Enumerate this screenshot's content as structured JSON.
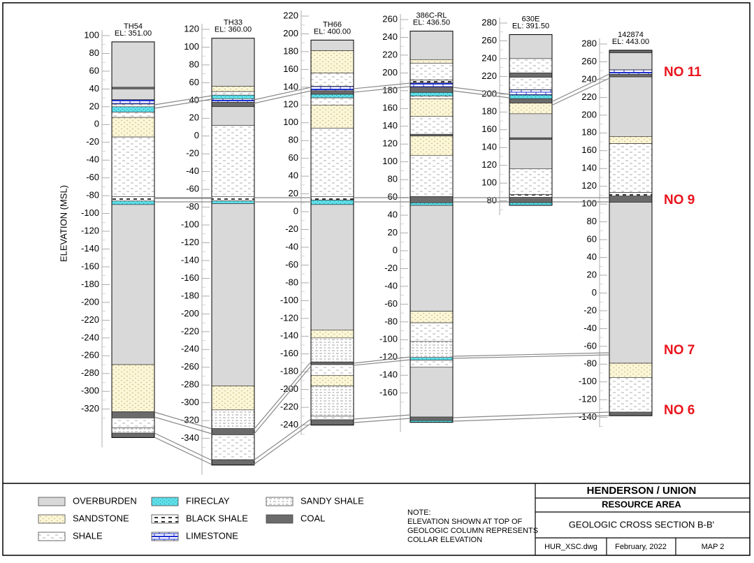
{
  "y_axis_label": "ELEVATION (MSL)",
  "legend": [
    {
      "label": "OVERBURDEN",
      "color": "#d9d9d9"
    },
    {
      "label": "SANDSTONE",
      "color": "#fcf6d8"
    },
    {
      "label": "SHALE",
      "color": "#ffffff"
    },
    {
      "label": "FIRECLAY",
      "color": "#5fe0ea"
    },
    {
      "label": "BLACK SHALE",
      "color": "#ffffff"
    },
    {
      "label": "LIMESTONE",
      "color": "#ffffff"
    },
    {
      "label": "SANDY SHALE",
      "color": "#ffffff"
    },
    {
      "label": "COAL",
      "color": "#6b6b6b"
    }
  ],
  "seams": [
    "NO 11",
    "NO 9",
    "NO 7",
    "NO 6"
  ],
  "columns": [
    {
      "name": "TH54",
      "elevation": "EL: 351.00",
      "ticks": [
        100,
        80,
        60,
        40,
        20,
        0,
        -20,
        -40,
        -60,
        -80,
        -100,
        -120,
        -140,
        -160,
        -180,
        -200,
        -220,
        -240,
        -260,
        -280,
        -300,
        -320
      ],
      "layers": [
        {
          "lith": "OVERBURDEN",
          "top": 93,
          "bottom": 42
        },
        {
          "lith": "COAL",
          "top": 42,
          "bottom": 40
        },
        {
          "lith": "OVERBURDEN",
          "top": 40,
          "bottom": 28
        },
        {
          "lith": "LIMESTONE",
          "top": 28,
          "bottom": 23
        },
        {
          "lith": "SHALE",
          "top": 23,
          "bottom": 20
        },
        {
          "lith": "FIRECLAY",
          "top": 20,
          "bottom": 14
        },
        {
          "lith": "SHALE",
          "top": 14,
          "bottom": 8
        },
        {
          "lith": "SANDSTONE",
          "top": 8,
          "bottom": -14
        },
        {
          "lith": "SHALE",
          "top": -14,
          "bottom": -81
        },
        {
          "lith": "BLACK SHALE",
          "top": -81,
          "bottom": -86
        },
        {
          "lith": "FIRECLAY",
          "top": -86,
          "bottom": -90
        },
        {
          "lith": "OVERBURDEN",
          "top": -90,
          "bottom": -270
        },
        {
          "lith": "SANDSTONE",
          "top": -270,
          "bottom": -323
        },
        {
          "lith": "COAL",
          "top": -323,
          "bottom": -330
        },
        {
          "lith": "SHALE",
          "top": -330,
          "bottom": -341
        },
        {
          "lith": "SANDY SHALE",
          "top": -341,
          "bottom": -347
        },
        {
          "lith": "COAL",
          "top": -347,
          "bottom": -352
        }
      ]
    },
    {
      "name": "TH33",
      "elevation": "EL: 360.00",
      "ticks": [
        120,
        100,
        80,
        60,
        40,
        20,
        0,
        -20,
        -40,
        -60,
        -80,
        -100,
        -120,
        -140,
        -160,
        -180,
        -200,
        -220,
        -240,
        -260,
        -280,
        -300,
        -320,
        -340
      ],
      "layers": [
        {
          "lith": "OVERBURDEN",
          "top": 110,
          "bottom": 56
        },
        {
          "lith": "SANDSTONE",
          "top": 56,
          "bottom": 50
        },
        {
          "lith": "SHALE",
          "top": 50,
          "bottom": 46
        },
        {
          "lith": "FIRECLAY",
          "top": 46,
          "bottom": 42
        },
        {
          "lith": "LIMESTONE",
          "top": 42,
          "bottom": 38
        },
        {
          "lith": "COAL",
          "top": 38,
          "bottom": 33
        },
        {
          "lith": "OVERBURDEN",
          "top": 33,
          "bottom": 12
        },
        {
          "lith": "SHALE",
          "top": 12,
          "bottom": -68
        },
        {
          "lith": "BLACK SHALE",
          "top": -68,
          "bottom": -73
        },
        {
          "lith": "FIRECLAY",
          "top": -73,
          "bottom": -76
        },
        {
          "lith": "OVERBURDEN",
          "top": -76,
          "bottom": -281
        },
        {
          "lith": "SANDSTONE",
          "top": -281,
          "bottom": -308
        },
        {
          "lith": "SANDY SHALE",
          "top": -308,
          "bottom": -329
        },
        {
          "lith": "COAL",
          "top": -329,
          "bottom": -336
        },
        {
          "lith": "SHALE",
          "top": -336,
          "bottom": -364
        },
        {
          "lith": "COAL",
          "top": -364,
          "bottom": -370
        }
      ]
    },
    {
      "name": "TH66",
      "elevation": "EL: 400.00",
      "ticks": [
        220,
        200,
        180,
        160,
        140,
        120,
        100,
        80,
        60,
        40,
        20,
        0,
        -20,
        -40,
        -60,
        -80,
        -100,
        -120,
        -140,
        -160,
        -180,
        -200,
        -220,
        -240
      ],
      "layers": [
        {
          "lith": "OVERBURDEN",
          "top": 193,
          "bottom": 181
        },
        {
          "lith": "SANDSTONE",
          "top": 181,
          "bottom": 156
        },
        {
          "lith": "SHALE",
          "top": 156,
          "bottom": 141
        },
        {
          "lith": "LIMESTONE",
          "top": 141,
          "bottom": 136
        },
        {
          "lith": "COAL",
          "top": 136,
          "bottom": 132
        },
        {
          "lith": "FIRECLAY",
          "top": 132,
          "bottom": 128
        },
        {
          "lith": "SHALE",
          "top": 128,
          "bottom": 120
        },
        {
          "lith": "SANDSTONE",
          "top": 120,
          "bottom": 94
        },
        {
          "lith": "SHALE",
          "top": 94,
          "bottom": 17
        },
        {
          "lith": "BLACK SHALE",
          "top": 17,
          "bottom": 13
        },
        {
          "lith": "FIRECLAY",
          "top": 13,
          "bottom": 8
        },
        {
          "lith": "OVERBURDEN",
          "top": 8,
          "bottom": -133
        },
        {
          "lith": "SANDSTONE",
          "top": -133,
          "bottom": -142
        },
        {
          "lith": "SANDY SHALE",
          "top": -142,
          "bottom": -169
        },
        {
          "lith": "COAL",
          "top": -169,
          "bottom": -172
        },
        {
          "lith": "SHALE",
          "top": -172,
          "bottom": -184
        },
        {
          "lith": "SANDSTONE",
          "top": -184,
          "bottom": -196
        },
        {
          "lith": "SANDY SHALE",
          "top": -196,
          "bottom": -230
        },
        {
          "lith": "SHALE",
          "top": -230,
          "bottom": -234
        },
        {
          "lith": "COAL",
          "top": -234,
          "bottom": -240
        }
      ]
    },
    {
      "name": "386C-RL",
      "elevation": "EL: 436.50",
      "ticks": [
        260,
        240,
        220,
        200,
        180,
        160,
        140,
        120,
        100,
        80,
        60,
        40,
        20,
        0,
        -20,
        -40,
        -60,
        -80,
        -100,
        -120,
        -140,
        -160
      ],
      "layers": [
        {
          "lith": "OVERBURDEN",
          "top": 247,
          "bottom": 215
        },
        {
          "lith": "SANDSTONE",
          "top": 215,
          "bottom": 211
        },
        {
          "lith": "SHALE",
          "top": 211,
          "bottom": 192
        },
        {
          "lith": "BLACK SHALE",
          "top": 192,
          "bottom": 189
        },
        {
          "lith": "LIMESTONE",
          "top": 189,
          "bottom": 184
        },
        {
          "lith": "COAL",
          "top": 184,
          "bottom": 178
        },
        {
          "lith": "FIRECLAY",
          "top": 178,
          "bottom": 174
        },
        {
          "lith": "SHALE",
          "top": 174,
          "bottom": 171
        },
        {
          "lith": "SANDSTONE",
          "top": 171,
          "bottom": 151
        },
        {
          "lith": "SHALE",
          "top": 151,
          "bottom": 131
        },
        {
          "lith": "COAL",
          "top": 131,
          "bottom": 129
        },
        {
          "lith": "SANDSTONE",
          "top": 129,
          "bottom": 107
        },
        {
          "lith": "SHALE",
          "top": 107,
          "bottom": 61
        },
        {
          "lith": "COAL",
          "top": 61,
          "bottom": 54
        },
        {
          "lith": "FIRECLAY",
          "top": 54,
          "bottom": 51
        },
        {
          "lith": "OVERBURDEN",
          "top": 51,
          "bottom": -68
        },
        {
          "lith": "SANDSTONE",
          "top": -68,
          "bottom": -81
        },
        {
          "lith": "SHALE",
          "top": -81,
          "bottom": -102
        },
        {
          "lith": "SANDY SHALE",
          "top": -102,
          "bottom": -120
        },
        {
          "lith": "FIRECLAY",
          "top": -120,
          "bottom": -123
        },
        {
          "lith": "SHALE",
          "top": -123,
          "bottom": -131
        },
        {
          "lith": "OVERBURDEN",
          "top": -131,
          "bottom": -187
        },
        {
          "lith": "COAL",
          "top": -187,
          "bottom": -191
        },
        {
          "lith": "FIRECLAY",
          "top": -191,
          "bottom": -193
        }
      ]
    },
    {
      "name": "630E",
      "elevation": "EL: 391.50",
      "ticks": [
        280,
        260,
        240,
        220,
        200,
        180,
        160,
        140,
        120,
        100,
        80
      ],
      "layers": [
        {
          "lith": "OVERBURDEN",
          "top": 267,
          "bottom": 240
        },
        {
          "lith": "SHALE",
          "top": 240,
          "bottom": 224
        },
        {
          "lith": "COAL",
          "top": 224,
          "bottom": 219
        },
        {
          "lith": "SHALE",
          "top": 219,
          "bottom": 205
        },
        {
          "lith": "LIMESTONE",
          "top": 205,
          "bottom": 199
        },
        {
          "lith": "FIRECLAY",
          "top": 199,
          "bottom": 195
        },
        {
          "lith": "COAL",
          "top": 195,
          "bottom": 190
        },
        {
          "lith": "SANDSTONE",
          "top": 190,
          "bottom": 178
        },
        {
          "lith": "OVERBURDEN",
          "top": 178,
          "bottom": 151
        },
        {
          "lith": "COAL",
          "top": 151,
          "bottom": 149
        },
        {
          "lith": "OVERBURDEN",
          "top": 149,
          "bottom": 116
        },
        {
          "lith": "SHALE",
          "top": 116,
          "bottom": 87
        },
        {
          "lith": "BLACK SHALE",
          "top": 87,
          "bottom": 84
        },
        {
          "lith": "COAL",
          "top": 84,
          "bottom": 78
        },
        {
          "lith": "FIRECLAY",
          "top": 78,
          "bottom": 75
        }
      ]
    },
    {
      "name": "142874",
      "elevation": "EL: 443.00",
      "ticks": [
        280,
        260,
        240,
        220,
        200,
        180,
        160,
        140,
        120,
        100,
        80,
        60,
        40,
        20,
        0,
        -20,
        -40,
        -60,
        -80,
        -100,
        -120,
        -140
      ],
      "layers": [
        {
          "lith": "COAL",
          "top": 273,
          "bottom": 270
        },
        {
          "lith": "OVERBURDEN",
          "top": 270,
          "bottom": 251
        },
        {
          "lith": "LIMESTONE",
          "top": 251,
          "bottom": 246
        },
        {
          "lith": "COAL",
          "top": 246,
          "bottom": 243
        },
        {
          "lith": "OVERBURDEN",
          "top": 243,
          "bottom": 176
        },
        {
          "lith": "SANDSTONE",
          "top": 176,
          "bottom": 168
        },
        {
          "lith": "SHALE",
          "top": 168,
          "bottom": 113
        },
        {
          "lith": "BLACK SHALE",
          "top": 113,
          "bottom": 109
        },
        {
          "lith": "COAL",
          "top": 109,
          "bottom": 102
        },
        {
          "lith": "OVERBURDEN",
          "top": 102,
          "bottom": -79
        },
        {
          "lith": "SANDSTONE",
          "top": -79,
          "bottom": -95
        },
        {
          "lith": "SHALE",
          "top": -95,
          "bottom": -134
        },
        {
          "lith": "COAL",
          "top": -134,
          "bottom": -138
        }
      ]
    }
  ],
  "note": [
    "NOTE:",
    "ELEVATION SHOWN AT TOP OF",
    "GEOLOGIC COLUMN REPRESENTS",
    "COLLAR ELEVATION"
  ],
  "title_block": {
    "company": "HENDERSON / UNION",
    "area": "RESOURCE AREA",
    "title": "GEOLOGIC CROSS SECTION B-B'",
    "file": "HUR_XSC.dwg",
    "date": "February, 2022",
    "map": "MAP 2"
  }
}
